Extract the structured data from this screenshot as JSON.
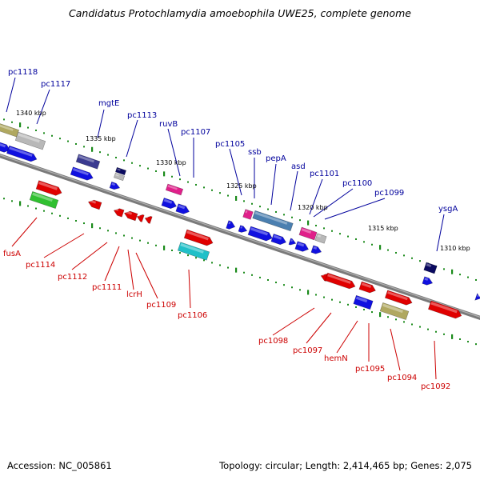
{
  "title": "Candidatus Protochlamydia amoebophila UWE25, complete genome",
  "footer": {
    "accession": "Accession: NC_005861",
    "topology": "Topology: circular; Length: 2,414,465 bp; Genes: 2,075"
  },
  "colors": {
    "backbone": "#7a7a7a",
    "tick": "#1a8a1a",
    "label_top": "#00009c",
    "label_bottom": "#cc0000"
  },
  "scale_marks": [
    {
      "text": "1340 kbp"
    },
    {
      "text": "1335 kbp"
    },
    {
      "text": "1330 kbp"
    },
    {
      "text": "1325 kbp"
    },
    {
      "text": "1320 kbp"
    },
    {
      "text": "1315 kbp"
    },
    {
      "text": "1310 kbp"
    }
  ],
  "top_labels": [
    {
      "text": "pc1118"
    },
    {
      "text": "pc1117"
    },
    {
      "text": "mgtE"
    },
    {
      "text": "pc1113"
    },
    {
      "text": "ruvB"
    },
    {
      "text": "pc1107"
    },
    {
      "text": "pc1105"
    },
    {
      "text": "ssb"
    },
    {
      "text": "pepA"
    },
    {
      "text": "asd"
    },
    {
      "text": "pc1101"
    },
    {
      "text": "pc1100"
    },
    {
      "text": "pc1099"
    },
    {
      "text": "ysgA"
    }
  ],
  "bottom_labels": [
    {
      "text": "fusA"
    },
    {
      "text": "pc1114"
    },
    {
      "text": "pc1112"
    },
    {
      "text": "pc1111"
    },
    {
      "text": "lcrH"
    },
    {
      "text": "pc1109"
    },
    {
      "text": "pc1106"
    },
    {
      "text": "pc1098"
    },
    {
      "text": "pc1097"
    },
    {
      "text": "hemN"
    },
    {
      "text": "pc1095"
    },
    {
      "text": "pc1094"
    },
    {
      "text": "pc1092"
    }
  ],
  "gene_colors": {
    "blue": "#1010e0",
    "red": "#e00000",
    "olive": "#b0a860",
    "silver": "#b8b8b8",
    "indigo": "#3a3a90",
    "navy": "#0a0a60",
    "magenta": "#e0208a",
    "steel": "#4a7fb0",
    "cyan": "#20c0c8",
    "green": "#30c030",
    "white": "#ffffff"
  }
}
